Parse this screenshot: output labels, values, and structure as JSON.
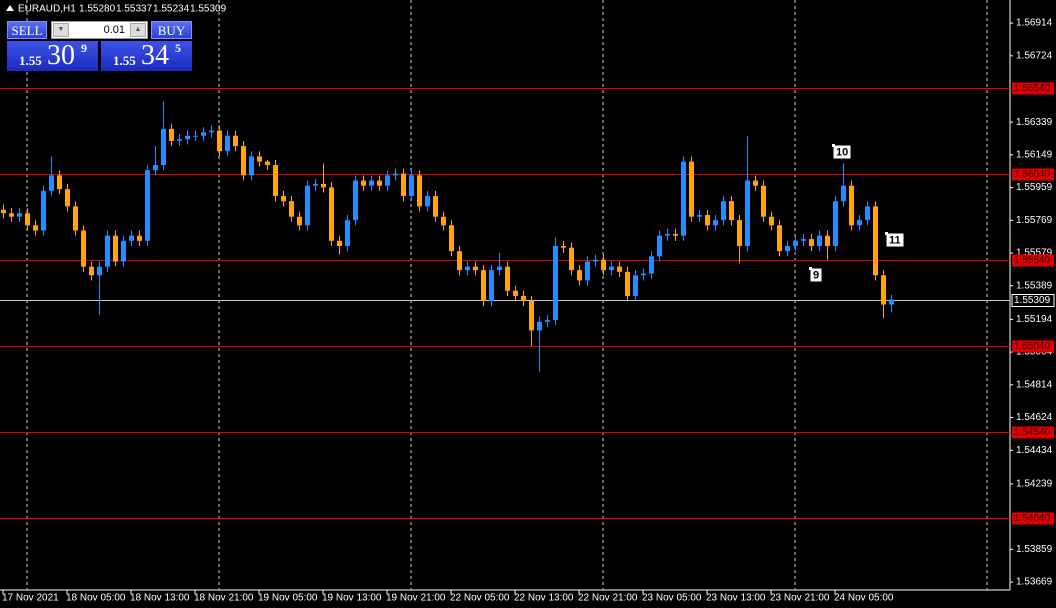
{
  "chart_data": {
    "type": "candlestick",
    "title": "EURAUD,H1",
    "header": [
      "1.55280",
      "1.55337",
      "1.55234",
      "1.55309"
    ],
    "categories": [
      "17 Nov 2021",
      null,
      null,
      null,
      null,
      null,
      null,
      null,
      "18 Nov 05:00",
      null,
      null,
      null,
      null,
      null,
      null,
      null,
      "18 Nov 13:00",
      null,
      null,
      null,
      null,
      null,
      null,
      null,
      "18 Nov 21:00",
      null,
      null,
      null,
      null,
      null,
      null,
      null,
      "19 Nov 05:00",
      null,
      null,
      null,
      null,
      null,
      null,
      null,
      "19 Nov 13:00",
      null,
      null,
      null,
      null,
      null,
      null,
      null,
      "19 Nov 21:00",
      null,
      null,
      null,
      null,
      null,
      null,
      null,
      "22 Nov 05:00",
      null,
      null,
      null,
      null,
      null,
      null,
      null,
      "22 Nov 13:00",
      null,
      null,
      null,
      null,
      null,
      null,
      null,
      "22 Nov 21:00",
      null,
      null,
      null,
      null,
      null,
      null,
      null,
      "23 Nov 05:00",
      null,
      null,
      null,
      null,
      null,
      null,
      null,
      "23 Nov 13:00",
      null,
      null,
      null,
      null,
      null,
      null,
      null,
      "23 Nov 21:00",
      null,
      null,
      null,
      null,
      null,
      null,
      null,
      "24 Nov 05:00",
      null,
      null,
      null,
      null,
      null,
      null,
      null
    ],
    "open": [
      1.5583,
      1.5581,
      1.5579,
      1.5581,
      1.5574,
      1.5571,
      1.5594,
      1.5603,
      1.5595,
      1.5585,
      1.5571,
      1.555,
      1.5545,
      1.555,
      1.5568,
      1.5553,
      1.5565,
      1.5568,
      1.5565,
      1.5606,
      1.5609,
      1.563,
      1.5623,
      1.5624,
      1.5626,
      1.5626,
      1.5628,
      1.5629,
      1.5617,
      1.5626,
      1.562,
      1.5603,
      1.5614,
      1.5611,
      1.5609,
      1.5591,
      1.5588,
      1.5579,
      1.5574,
      1.5597,
      1.5598,
      1.5596,
      1.5565,
      1.5562,
      1.5577,
      1.56,
      1.5597,
      1.56,
      1.5597,
      1.5603,
      1.5604,
      1.5591,
      1.5603,
      1.5585,
      1.5591,
      1.5579,
      1.5574,
      1.5559,
      1.5548,
      1.555,
      1.5548,
      1.553,
      1.5548,
      1.555,
      1.5536,
      1.5533,
      1.553,
      1.5513,
      1.5518,
      1.5519,
      1.5562,
      1.5561,
      1.5548,
      1.5542,
      1.5553,
      1.5554,
      1.5548,
      1.555,
      1.5547,
      1.5533,
      1.5545,
      1.5546,
      1.5556,
      1.5568,
      1.5569,
      1.5568,
      1.5611,
      1.5579,
      1.558,
      1.5574,
      1.5577,
      1.5588,
      1.5577,
      1.5562,
      1.56,
      1.5597,
      1.5579,
      1.5574,
      1.5559,
      1.5562,
      1.5565,
      1.5566,
      1.5562,
      1.5568,
      1.5562,
      1.5588,
      1.5597,
      1.5574,
      1.5577,
      1.5585,
      1.5545,
      1.5528
    ],
    "high": [
      1.5586,
      1.5584,
      1.5584,
      1.5584,
      1.5577,
      1.5597,
      1.5614,
      1.5606,
      1.5598,
      1.5588,
      1.5574,
      1.5553,
      1.5553,
      1.5571,
      1.5571,
      1.5568,
      1.5571,
      1.5571,
      1.5609,
      1.562,
      1.5646,
      1.5633,
      1.5627,
      1.5629,
      1.5629,
      1.5631,
      1.5632,
      1.5632,
      1.5629,
      1.5629,
      1.5623,
      1.5617,
      1.5617,
      1.5612,
      1.5612,
      1.5594,
      1.5591,
      1.5582,
      1.56,
      1.5601,
      1.561,
      1.5599,
      1.5568,
      1.558,
      1.5603,
      1.5603,
      1.5603,
      1.5603,
      1.5606,
      1.5607,
      1.5607,
      1.5606,
      1.5606,
      1.5594,
      1.5594,
      1.5582,
      1.5577,
      1.5562,
      1.5553,
      1.5553,
      1.5551,
      1.5551,
      1.5558,
      1.5553,
      1.5539,
      1.5536,
      1.5533,
      1.5521,
      1.5522,
      1.5567,
      1.5565,
      1.5564,
      1.5551,
      1.5556,
      1.5557,
      1.5557,
      1.5553,
      1.5553,
      1.555,
      1.5548,
      1.5549,
      1.5559,
      1.5571,
      1.5572,
      1.5572,
      1.5614,
      1.5614,
      1.5583,
      1.5583,
      1.558,
      1.5591,
      1.5591,
      1.558,
      1.5626,
      1.5603,
      1.56,
      1.5582,
      1.5577,
      1.5565,
      1.5568,
      1.5569,
      1.5569,
      1.5571,
      1.5571,
      1.5591,
      1.561,
      1.56,
      1.558,
      1.5588,
      1.5588,
      1.5548,
      1.55337
    ],
    "low": [
      1.5578,
      1.5576,
      1.5576,
      1.5571,
      1.5568,
      1.5568,
      1.5591,
      1.5592,
      1.5582,
      1.5568,
      1.5547,
      1.5542,
      1.5522,
      1.5547,
      1.555,
      1.555,
      1.5562,
      1.5562,
      1.5562,
      1.5603,
      1.5606,
      1.562,
      1.562,
      1.5621,
      1.5623,
      1.5623,
      1.5625,
      1.5614,
      1.5614,
      1.5617,
      1.56,
      1.56,
      1.5608,
      1.5606,
      1.5588,
      1.5585,
      1.5576,
      1.5571,
      1.5571,
      1.5594,
      1.5593,
      1.5562,
      1.5557,
      1.5559,
      1.5574,
      1.5594,
      1.5594,
      1.5594,
      1.5594,
      1.56,
      1.5588,
      1.5588,
      1.5582,
      1.5582,
      1.5576,
      1.5571,
      1.5556,
      1.5545,
      1.5545,
      1.5545,
      1.5527,
      1.5527,
      1.5545,
      1.5533,
      1.553,
      1.5527,
      1.5504,
      1.5489,
      1.5515,
      1.5516,
      1.5558,
      1.5545,
      1.5539,
      1.5539,
      1.555,
      1.5545,
      1.5545,
      1.5544,
      1.553,
      1.553,
      1.5542,
      1.5543,
      1.5553,
      1.5565,
      1.5565,
      1.5565,
      1.5576,
      1.5576,
      1.5571,
      1.5571,
      1.5574,
      1.5574,
      1.5552,
      1.5559,
      1.5594,
      1.5576,
      1.5571,
      1.5556,
      1.5556,
      1.5559,
      1.5562,
      1.5559,
      1.5559,
      1.5554,
      1.5559,
      1.5585,
      1.5571,
      1.5571,
      1.5574,
      1.5542,
      1.552,
      1.55234
    ],
    "close": [
      1.5581,
      1.5579,
      1.5581,
      1.5574,
      1.5571,
      1.5594,
      1.5603,
      1.5595,
      1.5585,
      1.5571,
      1.555,
      1.5545,
      1.555,
      1.5568,
      1.5553,
      1.5565,
      1.5568,
      1.5565,
      1.5606,
      1.5609,
      1.563,
      1.5623,
      1.5624,
      1.5626,
      1.5626,
      1.5628,
      1.5629,
      1.5617,
      1.5626,
      1.562,
      1.5603,
      1.5614,
      1.5611,
      1.5609,
      1.5591,
      1.5588,
      1.5579,
      1.5574,
      1.5597,
      1.5598,
      1.5596,
      1.5565,
      1.5562,
      1.5577,
      1.56,
      1.5597,
      1.56,
      1.5597,
      1.5603,
      1.5604,
      1.5591,
      1.5603,
      1.5585,
      1.5591,
      1.5579,
      1.5574,
      1.5559,
      1.5548,
      1.555,
      1.5548,
      1.553,
      1.5548,
      1.555,
      1.5536,
      1.5533,
      1.553,
      1.5513,
      1.5518,
      1.5519,
      1.5562,
      1.5561,
      1.5548,
      1.5542,
      1.5553,
      1.5554,
      1.5548,
      1.555,
      1.5547,
      1.5533,
      1.5545,
      1.5546,
      1.5556,
      1.5568,
      1.5569,
      1.5568,
      1.5611,
      1.5579,
      1.558,
      1.5574,
      1.5577,
      1.5588,
      1.5577,
      1.5562,
      1.56,
      1.5597,
      1.5579,
      1.5574,
      1.5559,
      1.5562,
      1.5565,
      1.5566,
      1.5562,
      1.5568,
      1.5562,
      1.5588,
      1.5597,
      1.5574,
      1.5577,
      1.5585,
      1.5545,
      1.5528,
      1.55309
    ],
    "colors": {
      "up": "#1e90ff",
      "down": "#ffa500",
      "level": "#e00000",
      "bid": "#c8c8c8"
    },
    "ylim": [
      1.53623,
      1.57048
    ],
    "yticks": [
      1.56914,
      1.56724,
      1.56339,
      1.56149,
      1.55959,
      1.55769,
      1.55579,
      1.55389,
      1.55194,
      1.55004,
      1.54814,
      1.54624,
      1.54434,
      1.54239,
      1.53859,
      1.53669
    ],
    "levels": [
      {
        "value": 1.5654,
        "label": "1.56540"
      },
      {
        "value": 1.5604,
        "label": "1.56040"
      },
      {
        "value": 1.5554,
        "label": "1.55540"
      },
      {
        "value": 1.5504,
        "label": "1.55040"
      },
      {
        "value": 1.5454,
        "label": "1.54540"
      },
      {
        "value": 1.5404,
        "label": "1.54040"
      }
    ],
    "bid": 1.55309,
    "annotations": [
      "9",
      "10",
      "11"
    ],
    "grid": false
  },
  "trade_panel": {
    "sell": "SELL",
    "buy": "BUY",
    "lot": "0.01",
    "sell_price": {
      "big": "1.55",
      "pips": "30",
      "point": "9"
    },
    "buy_price": {
      "big": "1.55",
      "pips": "34",
      "point": "5"
    }
  }
}
